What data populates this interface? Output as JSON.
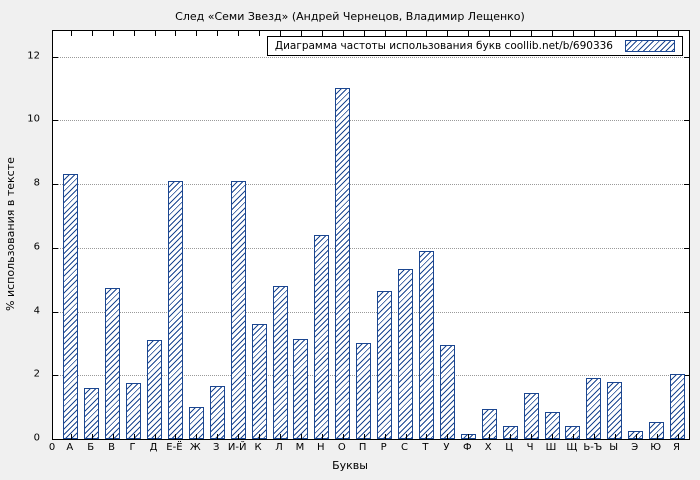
{
  "chart_data": {
    "type": "bar",
    "title": "След «Семи Звезд» (Андрей Чернецов, Владимир Лещенко)",
    "legend_label": "Диаграмма частоты использования букв coollib.net/b/690336",
    "xlabel": "Буквы",
    "ylabel": "% использования в тексте",
    "origin_label": "0",
    "categories": [
      "А",
      "Б",
      "В",
      "Г",
      "Д",
      "Е-Ё",
      "Ж",
      "З",
      "И-Й",
      "К",
      "Л",
      "М",
      "Н",
      "О",
      "П",
      "Р",
      "С",
      "Т",
      "У",
      "Ф",
      "Х",
      "Ц",
      "Ч",
      "Ш",
      "Щ",
      "Ь-Ъ",
      "Ы",
      "Э",
      "Ю",
      "Я"
    ],
    "values": [
      8.3,
      1.6,
      4.75,
      1.75,
      3.1,
      8.1,
      1.0,
      1.65,
      8.1,
      3.6,
      4.8,
      3.15,
      6.4,
      11.0,
      3.0,
      4.65,
      5.35,
      5.9,
      2.95,
      0.15,
      0.95,
      0.4,
      1.45,
      0.85,
      0.4,
      1.9,
      1.8,
      0.25,
      0.55,
      2.05
    ],
    "yticks": [
      0,
      2,
      4,
      6,
      8,
      10,
      12
    ],
    "ylim": [
      0,
      12.8
    ],
    "grid": true,
    "legend_position": "top-right",
    "colors": {
      "bar": "#1b4690",
      "plot_bg": "#ffffff",
      "page_bg": "#f0f0f0",
      "grid": "#9a9a9a",
      "axis": "#000000"
    }
  }
}
